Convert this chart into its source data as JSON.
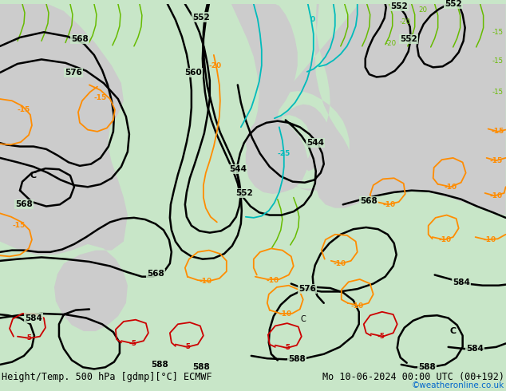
{
  "title_left": "Height/Temp. 500 hPa [gdmp][°C] ECMWF",
  "title_right": "Mo 10-06-2024 00:00 UTC (00+192)",
  "credit": "©weatheronline.co.uk",
  "bg_color": "#c8e6c8",
  "land_color": "#cccccc",
  "contour_color_black": "#000000",
  "contour_color_orange": "#ff8c00",
  "contour_color_cyan": "#00bbbb",
  "contour_color_green": "#66bb00",
  "contour_color_red": "#cc0000",
  "title_fontsize": 8.5,
  "credit_fontsize": 7.5,
  "credit_color": "#0066cc"
}
